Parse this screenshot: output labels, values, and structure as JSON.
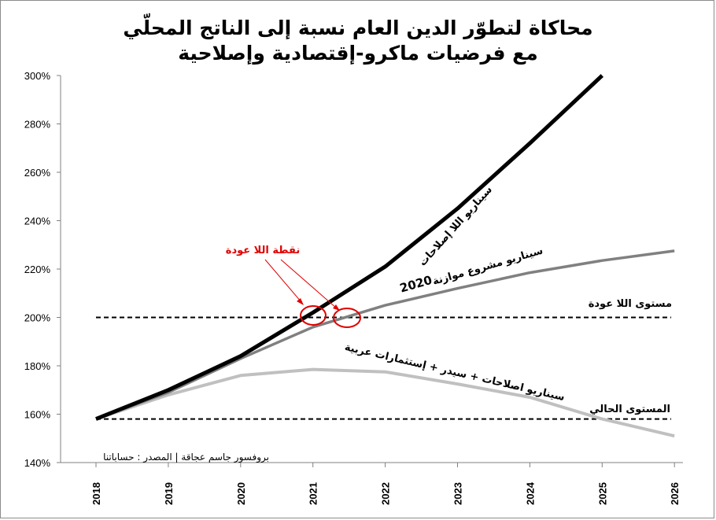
{
  "chart_data": {
    "type": "line",
    "title_line1": "محاكاة لتطوّر الدين العام نسبة إلى الناتج المحلّي",
    "title_line2": "مع فرضيات ماكرو-إقتصادية وإصلاحية",
    "x": [
      "2018",
      "2019",
      "2020",
      "2021",
      "2022",
      "2023",
      "2024",
      "2025",
      "2026"
    ],
    "ylim": [
      140,
      300
    ],
    "yticks": [
      "140%",
      "160%",
      "180%",
      "200%",
      "220%",
      "240%",
      "260%",
      "280%",
      "300%"
    ],
    "series": [
      {
        "name": "سيناريو اللا إصلاحات",
        "color": "#000000",
        "x": [
          2018,
          2019,
          2020,
          2021,
          2022,
          2023,
          2024,
          2025
        ],
        "values": [
          158,
          170,
          184,
          202,
          221,
          245,
          272,
          300
        ]
      },
      {
        "name": "سيناريو مشروع موازنة 2020",
        "color": "#808080",
        "x": [
          2018,
          2019,
          2020,
          2021,
          2022,
          2023,
          2024,
          2025,
          2026
        ],
        "values": [
          158,
          169,
          183,
          196,
          205,
          212,
          218.5,
          223.5,
          227.5
        ]
      },
      {
        "name": "سيناريو اصلاحات + سيدر + إستثمارات عربية",
        "color": "#c0c0c0",
        "x": [
          2018,
          2019,
          2020,
          2021,
          2022,
          2023,
          2024,
          2025,
          2026
        ],
        "values": [
          158,
          168,
          176,
          178.5,
          177.5,
          172.5,
          167,
          158,
          151
        ]
      }
    ],
    "reference_lines": [
      {
        "label": "مستوى اللا عودة",
        "value": 200
      },
      {
        "label": "المستوى الحالي",
        "value": 158
      }
    ],
    "annotations": {
      "no_return_point": "نقطة اللا عودة",
      "no_reform": "سيناريو اللا إصلاحات",
      "budget_line1": "سيناريو مشروع موازنة",
      "budget_line2": "2020",
      "reforms_line1": "سيناريو اصلاحات + سيدر + إستثمارات عربية"
    },
    "source": "بروفسور جاسم عجاقة | المصدر : حساباتنا",
    "grid": false
  }
}
